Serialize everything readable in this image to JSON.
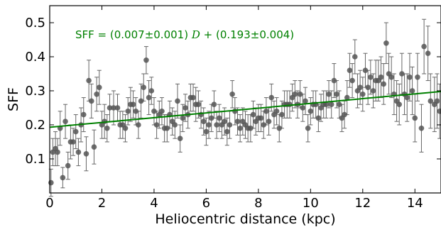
{
  "chart_data": {
    "type": "scatter",
    "xlabel": "Heliocentric distance (kpc)",
    "ylabel": "SFF",
    "xlim": [
      0,
      15
    ],
    "ylim": [
      0,
      0.55
    ],
    "xticks": [
      "0",
      "2",
      "4",
      "6",
      "8",
      "10",
      "12",
      "14"
    ],
    "yticks": [
      "0.1",
      "0.2",
      "0.3",
      "0.4",
      "0.5"
    ],
    "grid": false,
    "annotation": {
      "prefix": "SFF = (0.007",
      "pm1": "±",
      "mid": "0.001) ",
      "var": "D",
      "plus": " + (0.193",
      "pm2": "±",
      "end": "0.004)"
    },
    "fit": {
      "slope": 0.007,
      "intercept": 0.193,
      "color": "#008000"
    },
    "series": [
      {
        "color": "#555555",
        "points": [
          {
            "x": 0.05,
            "y": 0.03,
            "e": 0.04
          },
          {
            "x": 0.12,
            "y": 0.12,
            "e": 0.04
          },
          {
            "x": 0.22,
            "y": 0.13,
            "e": 0.05
          },
          {
            "x": 0.3,
            "y": 0.12,
            "e": 0.04
          },
          {
            "x": 0.4,
            "y": 0.19,
            "e": 0.05
          },
          {
            "x": 0.5,
            "y": 0.045,
            "e": 0.03
          },
          {
            "x": 0.6,
            "y": 0.21,
            "e": 0.05
          },
          {
            "x": 0.7,
            "y": 0.08,
            "e": 0.04
          },
          {
            "x": 0.8,
            "y": 0.15,
            "e": 0.05
          },
          {
            "x": 0.9,
            "y": 0.15,
            "e": 0.04
          },
          {
            "x": 1.0,
            "y": 0.18,
            "e": 0.05
          },
          {
            "x": 1.1,
            "y": 0.12,
            "e": 0.04
          },
          {
            "x": 1.2,
            "y": 0.2,
            "e": 0.05
          },
          {
            "x": 1.3,
            "y": 0.23,
            "e": 0.05
          },
          {
            "x": 1.4,
            "y": 0.115,
            "e": 0.05
          },
          {
            "x": 1.5,
            "y": 0.33,
            "e": 0.06
          },
          {
            "x": 1.6,
            "y": 0.27,
            "e": 0.05
          },
          {
            "x": 1.7,
            "y": 0.135,
            "e": 0.05
          },
          {
            "x": 1.8,
            "y": 0.29,
            "e": 0.05
          },
          {
            "x": 1.9,
            "y": 0.31,
            "e": 0.05
          },
          {
            "x": 2.0,
            "y": 0.2,
            "e": 0.04
          },
          {
            "x": 2.1,
            "y": 0.21,
            "e": 0.05
          },
          {
            "x": 2.2,
            "y": 0.19,
            "e": 0.04
          },
          {
            "x": 2.3,
            "y": 0.25,
            "e": 0.04
          },
          {
            "x": 2.45,
            "y": 0.25,
            "e": 0.05
          },
          {
            "x": 2.6,
            "y": 0.25,
            "e": 0.04
          },
          {
            "x": 2.7,
            "y": 0.2,
            "e": 0.04
          },
          {
            "x": 2.8,
            "y": 0.2,
            "e": 0.04
          },
          {
            "x": 2.9,
            "y": 0.19,
            "e": 0.04
          },
          {
            "x": 3.0,
            "y": 0.24,
            "e": 0.04
          },
          {
            "x": 3.1,
            "y": 0.26,
            "e": 0.05
          },
          {
            "x": 3.2,
            "y": 0.26,
            "e": 0.04
          },
          {
            "x": 3.3,
            "y": 0.24,
            "e": 0.04
          },
          {
            "x": 3.4,
            "y": 0.2,
            "e": 0.04
          },
          {
            "x": 3.5,
            "y": 0.27,
            "e": 0.05
          },
          {
            "x": 3.6,
            "y": 0.31,
            "e": 0.04
          },
          {
            "x": 3.7,
            "y": 0.39,
            "e": 0.04
          },
          {
            "x": 3.8,
            "y": 0.28,
            "e": 0.05
          },
          {
            "x": 3.9,
            "y": 0.3,
            "e": 0.04
          },
          {
            "x": 4.0,
            "y": 0.24,
            "e": 0.04
          },
          {
            "x": 4.1,
            "y": 0.2,
            "e": 0.04
          },
          {
            "x": 4.2,
            "y": 0.23,
            "e": 0.04
          },
          {
            "x": 4.3,
            "y": 0.24,
            "e": 0.04
          },
          {
            "x": 4.4,
            "y": 0.19,
            "e": 0.04
          },
          {
            "x": 4.5,
            "y": 0.19,
            "e": 0.04
          },
          {
            "x": 4.6,
            "y": 0.23,
            "e": 0.04
          },
          {
            "x": 4.7,
            "y": 0.21,
            "e": 0.04
          },
          {
            "x": 4.8,
            "y": 0.2,
            "e": 0.04
          },
          {
            "x": 4.9,
            "y": 0.27,
            "e": 0.05
          },
          {
            "x": 5.0,
            "y": 0.16,
            "e": 0.04
          },
          {
            "x": 5.1,
            "y": 0.22,
            "e": 0.04
          },
          {
            "x": 5.2,
            "y": 0.25,
            "e": 0.04
          },
          {
            "x": 5.3,
            "y": 0.23,
            "e": 0.04
          },
          {
            "x": 5.4,
            "y": 0.28,
            "e": 0.04
          },
          {
            "x": 5.5,
            "y": 0.28,
            "e": 0.04
          },
          {
            "x": 5.6,
            "y": 0.26,
            "e": 0.05
          },
          {
            "x": 5.7,
            "y": 0.26,
            "e": 0.04
          },
          {
            "x": 5.8,
            "y": 0.23,
            "e": 0.04
          },
          {
            "x": 5.9,
            "y": 0.21,
            "e": 0.04
          },
          {
            "x": 6.0,
            "y": 0.18,
            "e": 0.04
          },
          {
            "x": 6.1,
            "y": 0.2,
            "e": 0.04
          },
          {
            "x": 6.2,
            "y": 0.22,
            "e": 0.04
          },
          {
            "x": 6.3,
            "y": 0.26,
            "e": 0.04
          },
          {
            "x": 6.4,
            "y": 0.2,
            "e": 0.04
          },
          {
            "x": 6.5,
            "y": 0.22,
            "e": 0.04
          },
          {
            "x": 6.6,
            "y": 0.2,
            "e": 0.04
          },
          {
            "x": 6.7,
            "y": 0.21,
            "e": 0.04
          },
          {
            "x": 6.8,
            "y": 0.18,
            "e": 0.04
          },
          {
            "x": 6.9,
            "y": 0.2,
            "e": 0.04
          },
          {
            "x": 7.0,
            "y": 0.29,
            "e": 0.04
          },
          {
            "x": 7.1,
            "y": 0.24,
            "e": 0.04
          },
          {
            "x": 7.2,
            "y": 0.21,
            "e": 0.04
          },
          {
            "x": 7.3,
            "y": 0.19,
            "e": 0.04
          },
          {
            "x": 7.4,
            "y": 0.21,
            "e": 0.04
          },
          {
            "x": 7.5,
            "y": 0.2,
            "e": 0.04
          },
          {
            "x": 7.6,
            "y": 0.19,
            "e": 0.04
          },
          {
            "x": 7.7,
            "y": 0.19,
            "e": 0.04
          },
          {
            "x": 7.8,
            "y": 0.23,
            "e": 0.04
          },
          {
            "x": 7.9,
            "y": 0.21,
            "e": 0.04
          },
          {
            "x": 8.0,
            "y": 0.22,
            "e": 0.04
          },
          {
            "x": 8.1,
            "y": 0.22,
            "e": 0.04
          },
          {
            "x": 8.2,
            "y": 0.2,
            "e": 0.04
          },
          {
            "x": 8.3,
            "y": 0.24,
            "e": 0.04
          },
          {
            "x": 8.4,
            "y": 0.21,
            "e": 0.04
          },
          {
            "x": 8.5,
            "y": 0.28,
            "e": 0.04
          },
          {
            "x": 8.6,
            "y": 0.23,
            "e": 0.04
          },
          {
            "x": 8.7,
            "y": 0.24,
            "e": 0.04
          },
          {
            "x": 8.8,
            "y": 0.19,
            "e": 0.04
          },
          {
            "x": 8.9,
            "y": 0.23,
            "e": 0.04
          },
          {
            "x": 9.0,
            "y": 0.26,
            "e": 0.04
          },
          {
            "x": 9.1,
            "y": 0.26,
            "e": 0.04
          },
          {
            "x": 9.2,
            "y": 0.26,
            "e": 0.04
          },
          {
            "x": 9.3,
            "y": 0.28,
            "e": 0.04
          },
          {
            "x": 9.4,
            "y": 0.29,
            "e": 0.04
          },
          {
            "x": 9.5,
            "y": 0.26,
            "e": 0.04
          },
          {
            "x": 9.6,
            "y": 0.29,
            "e": 0.04
          },
          {
            "x": 9.7,
            "y": 0.25,
            "e": 0.04
          },
          {
            "x": 9.8,
            "y": 0.27,
            "e": 0.04
          },
          {
            "x": 9.9,
            "y": 0.19,
            "e": 0.04
          },
          {
            "x": 10.0,
            "y": 0.24,
            "e": 0.04
          },
          {
            "x": 10.1,
            "y": 0.26,
            "e": 0.04
          },
          {
            "x": 10.2,
            "y": 0.26,
            "e": 0.04
          },
          {
            "x": 10.3,
            "y": 0.22,
            "e": 0.04
          },
          {
            "x": 10.4,
            "y": 0.25,
            "e": 0.04
          },
          {
            "x": 10.5,
            "y": 0.26,
            "e": 0.04
          },
          {
            "x": 10.6,
            "y": 0.26,
            "e": 0.04
          },
          {
            "x": 10.7,
            "y": 0.29,
            "e": 0.04
          },
          {
            "x": 10.8,
            "y": 0.26,
            "e": 0.04
          },
          {
            "x": 10.9,
            "y": 0.33,
            "e": 0.05
          },
          {
            "x": 11.0,
            "y": 0.29,
            "e": 0.04
          },
          {
            "x": 11.1,
            "y": 0.26,
            "e": 0.04
          },
          {
            "x": 11.2,
            "y": 0.22,
            "e": 0.04
          },
          {
            "x": 11.3,
            "y": 0.23,
            "e": 0.04
          },
          {
            "x": 11.4,
            "y": 0.28,
            "e": 0.05
          },
          {
            "x": 11.5,
            "y": 0.36,
            "e": 0.05
          },
          {
            "x": 11.6,
            "y": 0.33,
            "e": 0.05
          },
          {
            "x": 11.7,
            "y": 0.4,
            "e": 0.05
          },
          {
            "x": 11.8,
            "y": 0.3,
            "e": 0.05
          },
          {
            "x": 11.9,
            "y": 0.31,
            "e": 0.05
          },
          {
            "x": 12.0,
            "y": 0.29,
            "e": 0.05
          },
          {
            "x": 12.1,
            "y": 0.36,
            "e": 0.05
          },
          {
            "x": 12.2,
            "y": 0.31,
            "e": 0.05
          },
          {
            "x": 12.3,
            "y": 0.34,
            "e": 0.05
          },
          {
            "x": 12.4,
            "y": 0.3,
            "e": 0.05
          },
          {
            "x": 12.5,
            "y": 0.33,
            "e": 0.06
          },
          {
            "x": 12.6,
            "y": 0.33,
            "e": 0.06
          },
          {
            "x": 12.7,
            "y": 0.34,
            "e": 0.06
          },
          {
            "x": 12.8,
            "y": 0.32,
            "e": 0.06
          },
          {
            "x": 12.9,
            "y": 0.44,
            "e": 0.06
          },
          {
            "x": 13.0,
            "y": 0.35,
            "e": 0.06
          },
          {
            "x": 13.1,
            "y": 0.34,
            "e": 0.06
          },
          {
            "x": 13.2,
            "y": 0.29,
            "e": 0.06
          },
          {
            "x": 13.3,
            "y": 0.27,
            "e": 0.06
          },
          {
            "x": 13.4,
            "y": 0.26,
            "e": 0.06
          },
          {
            "x": 13.5,
            "y": 0.35,
            "e": 0.06
          },
          {
            "x": 13.6,
            "y": 0.29,
            "e": 0.06
          },
          {
            "x": 13.7,
            "y": 0.28,
            "e": 0.07
          },
          {
            "x": 13.8,
            "y": 0.34,
            "e": 0.07
          },
          {
            "x": 13.9,
            "y": 0.3,
            "e": 0.07
          },
          {
            "x": 14.0,
            "y": 0.22,
            "e": 0.07
          },
          {
            "x": 14.1,
            "y": 0.34,
            "e": 0.07
          },
          {
            "x": 14.25,
            "y": 0.19,
            "e": 0.07
          },
          {
            "x": 14.35,
            "y": 0.43,
            "e": 0.08
          },
          {
            "x": 14.5,
            "y": 0.41,
            "e": 0.08
          },
          {
            "x": 14.6,
            "y": 0.27,
            "e": 0.08
          },
          {
            "x": 14.75,
            "y": 0.26,
            "e": 0.08
          },
          {
            "x": 14.85,
            "y": 0.27,
            "e": 0.08
          },
          {
            "x": 14.95,
            "y": 0.24,
            "e": 0.08
          }
        ]
      }
    ]
  }
}
